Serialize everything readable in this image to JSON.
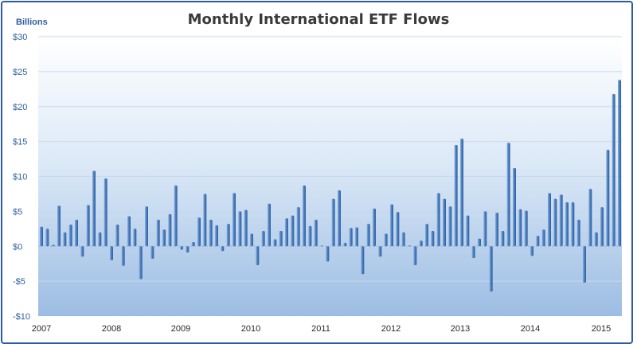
{
  "chart_data": {
    "type": "bar",
    "title": "Monthly International ETF Flows",
    "ylabel": "Billions",
    "ylim": [
      -10,
      30
    ],
    "yticks": [
      {
        "value": 30,
        "label": "$30"
      },
      {
        "value": 25,
        "label": "$25"
      },
      {
        "value": 20,
        "label": "$20"
      },
      {
        "value": 15,
        "label": "$15"
      },
      {
        "value": 10,
        "label": "$10"
      },
      {
        "value": 5,
        "label": "$5"
      },
      {
        "value": 0,
        "label": "$0"
      },
      {
        "value": -5,
        "label": "-$5"
      },
      {
        "value": -10,
        "label": "-$10"
      }
    ],
    "xticks": [
      "2007",
      "2008",
      "2009",
      "2010",
      "2011",
      "2012",
      "2013",
      "2014",
      "2015"
    ],
    "grid": true,
    "legend": "none",
    "colors": {
      "bar": "#3f73b5",
      "bar_light": "#8fb3de",
      "axis_text": "#2f5fa0",
      "grid": "#c7d8ef",
      "frame": "#2a5aa8"
    },
    "values": [
      2.8,
      2.5,
      0.2,
      5.8,
      2.0,
      3.1,
      3.8,
      -1.5,
      5.9,
      10.8,
      2.0,
      9.7,
      -2.0,
      3.1,
      -2.8,
      4.3,
      2.5,
      -4.7,
      5.7,
      -1.8,
      3.8,
      2.4,
      4.6,
      8.7,
      -0.5,
      -0.9,
      0.6,
      4.1,
      7.5,
      3.8,
      3.0,
      -0.7,
      3.2,
      7.6,
      5.0,
      5.2,
      1.8,
      -2.7,
      2.2,
      6.1,
      1.0,
      2.2,
      4.0,
      4.4,
      5.6,
      8.7,
      2.9,
      3.8,
      0.1,
      -2.2,
      6.8,
      8.0,
      0.5,
      2.6,
      2.7,
      -4.0,
      3.2,
      5.4,
      -1.5,
      1.8,
      6.0,
      4.9,
      2.0,
      0.1,
      -2.7,
      0.8,
      3.2,
      2.2,
      7.6,
      6.8,
      5.7,
      14.5,
      15.4,
      4.4,
      -1.7,
      1.1,
      5.0,
      -6.5,
      4.8,
      2.2,
      14.8,
      11.2,
      5.3,
      5.1,
      -1.4,
      1.5,
      2.4,
      7.6,
      6.8,
      7.4,
      6.3,
      6.3,
      3.8,
      -5.2,
      8.2,
      2.0,
      5.6,
      13.8,
      21.8,
      23.8
    ]
  }
}
